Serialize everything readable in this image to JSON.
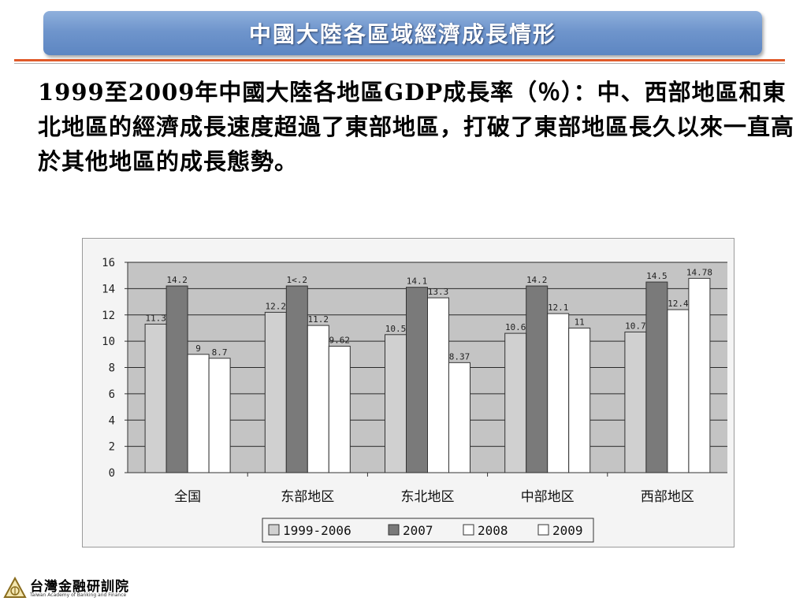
{
  "slide": {
    "title": "中國大陸各區域經濟成長情形",
    "paragraph": "1999至2009年中國大陸各地區GDP成長率（％）：中、西部地區和東北地區的經濟成長速度超過了東部地區，打破了東部地區長久以來一直高於其他地區的成長態勢。"
  },
  "footer": {
    "logo_name": "台灣金融研訓院",
    "logo_english": "Taiwan Academy of Banking and Finance"
  },
  "colors": {
    "title_bar": "#6f95cc",
    "series": [
      "#d0d0d0",
      "#7a7a7a",
      "#ffffff",
      "#ffffff"
    ]
  },
  "chart_data": {
    "type": "bar",
    "categories": [
      "全国",
      "东部地区",
      "东北地区",
      "中部地区",
      "西部地区"
    ],
    "series": [
      {
        "name": "1999-2006",
        "values": [
          11.3,
          12.2,
          10.5,
          10.6,
          10.7
        ],
        "labels": [
          "11.3",
          "12.2",
          "10.5",
          "10.6",
          "10.7"
        ]
      },
      {
        "name": "2007",
        "values": [
          14.2,
          14.2,
          14.1,
          14.2,
          14.5
        ],
        "labels": [
          "14.2",
          "1<.2",
          "14.1",
          "14.2",
          "14.5"
        ]
      },
      {
        "name": "2008",
        "values": [
          9,
          11.2,
          13.3,
          12.1,
          12.4
        ],
        "labels": [
          "9",
          "11.2",
          "13.3",
          "12.1",
          "12.4"
        ]
      },
      {
        "name": "2009",
        "values": [
          8.7,
          9.62,
          8.37,
          11,
          14.78
        ],
        "labels": [
          "8.7",
          "9.62",
          "8.37",
          "11",
          "14.78"
        ]
      }
    ],
    "ylim": [
      0,
      16
    ],
    "yticks": [
      "0",
      "2",
      "4",
      "6",
      "8",
      "10",
      "12",
      "14",
      "16"
    ],
    "grid": true,
    "legend_position": "bottom"
  }
}
